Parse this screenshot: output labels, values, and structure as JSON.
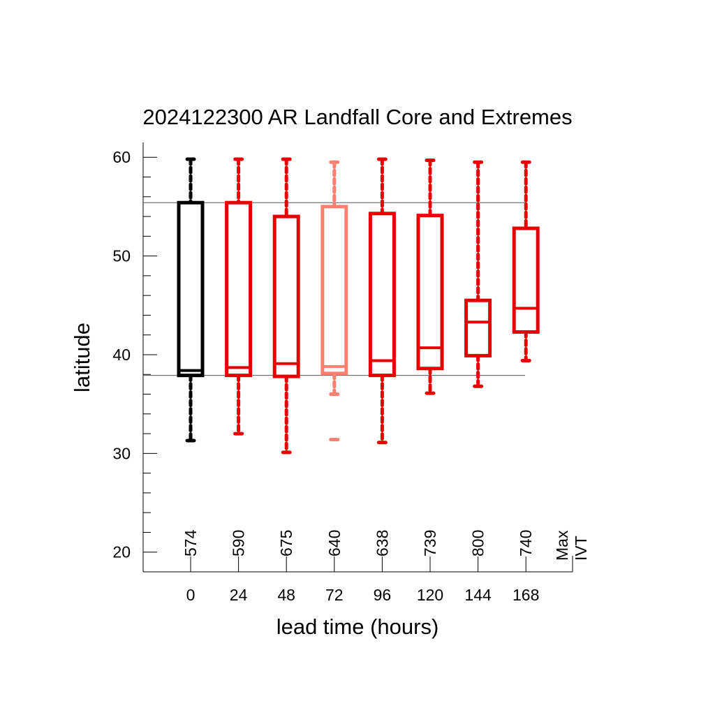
{
  "chart_data": {
    "type": "boxplot",
    "title": "2024122300 AR Landfall Core and Extremes",
    "xlabel": "lead time (hours)",
    "ylabel": "latitude",
    "ylim": [
      18,
      61.5
    ],
    "yticks": [
      20,
      30,
      40,
      50,
      60
    ],
    "categories": [
      "0",
      "24",
      "48",
      "72",
      "96",
      "120",
      "144",
      "168"
    ],
    "ivt_header": [
      "Max",
      "IVT"
    ],
    "reference_lines": [
      55.4,
      37.9
    ],
    "boxes": [
      {
        "lead": "0",
        "min": 31.3,
        "q1": 37.9,
        "median": 38.4,
        "q3": 55.4,
        "max": 59.8,
        "max_ivt": "574",
        "color": "#000000"
      },
      {
        "lead": "24",
        "min": 32.0,
        "q1": 37.9,
        "median": 38.7,
        "q3": 55.4,
        "max": 59.8,
        "max_ivt": "590",
        "color": "#e60000"
      },
      {
        "lead": "48",
        "min": 30.1,
        "q1": 37.8,
        "median": 39.1,
        "q3": 54.0,
        "max": 59.8,
        "max_ivt": "675",
        "color": "#e60000"
      },
      {
        "lead": "72",
        "min": 36.0,
        "q1": 38.1,
        "median": 38.8,
        "q3": 55.0,
        "max": 59.5,
        "max_ivt": "640",
        "color": "#fa8072",
        "outliers": [
          31.4
        ]
      },
      {
        "lead": "96",
        "min": 31.1,
        "q1": 37.9,
        "median": 39.4,
        "q3": 54.3,
        "max": 59.8,
        "max_ivt": "638",
        "color": "#e60000"
      },
      {
        "lead": "120",
        "min": 36.1,
        "q1": 38.6,
        "median": 40.7,
        "q3": 54.1,
        "max": 59.7,
        "max_ivt": "739",
        "color": "#e60000"
      },
      {
        "lead": "144",
        "min": 36.8,
        "q1": 39.9,
        "median": 43.3,
        "q3": 45.5,
        "max": 59.5,
        "max_ivt": "800",
        "color": "#e60000"
      },
      {
        "lead": "168",
        "min": 39.4,
        "q1": 42.3,
        "median": 44.7,
        "q3": 52.8,
        "max": 59.5,
        "max_ivt": "740",
        "color": "#e60000"
      }
    ]
  }
}
